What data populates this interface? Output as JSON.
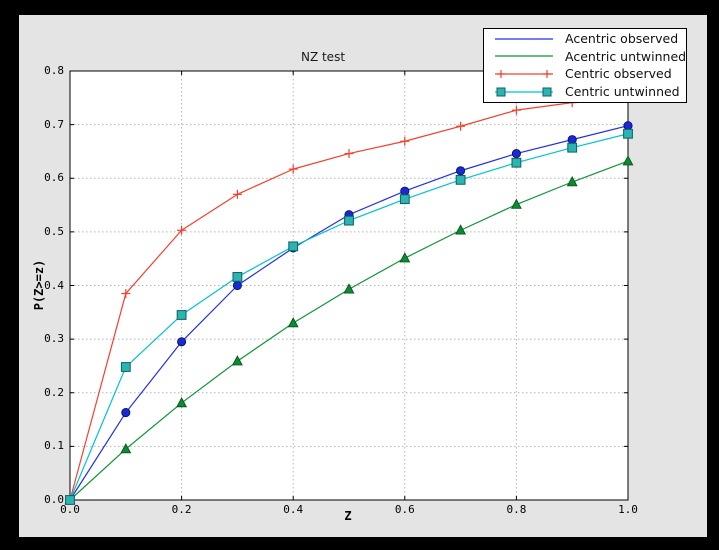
{
  "window": {
    "bg": "#000000",
    "figure_bg": "#e4e4e4",
    "plot_bg": "#ffffff",
    "grid_color": "#b3b3b3",
    "axis_color": "#000000"
  },
  "chart_data": {
    "type": "line",
    "title": "NZ test",
    "xlabel": "Z",
    "ylabel": "P(Z>=z)",
    "xlim": [
      0.0,
      1.0
    ],
    "ylim": [
      0.0,
      0.8
    ],
    "grid": "dashed gray; horizontal every 0.1, vertical every 0.2",
    "legend_position": "upper right, overlapping top-right plot corner",
    "x_tick_labels": [
      "0.0",
      "0.2",
      "0.4",
      "0.6",
      "0.8",
      "1.0"
    ],
    "x_tick_values": [
      0.0,
      0.2,
      0.4,
      0.6,
      0.8,
      1.0
    ],
    "y_tick_labels": [
      "0.0",
      "0.1",
      "0.2",
      "0.3",
      "0.4",
      "0.5",
      "0.6",
      "0.7",
      "0.8"
    ],
    "y_tick_values": [
      0.0,
      0.1,
      0.2,
      0.3,
      0.4,
      0.5,
      0.6,
      0.7,
      0.8
    ],
    "x_grid_values": [
      0.2,
      0.4,
      0.6,
      0.8
    ],
    "y_grid_values": [
      0.1,
      0.2,
      0.3,
      0.4,
      0.5,
      0.6,
      0.7
    ],
    "x": [
      0.0,
      0.1,
      0.2,
      0.3,
      0.4,
      0.5,
      0.6,
      0.7,
      0.8,
      0.9,
      1.0
    ],
    "series": [
      {
        "name": "Acentric observed",
        "color": "#2230e4",
        "marker": "circle",
        "marker_fill": "#1a2ad2",
        "marker_edge": "#071070",
        "legend_marker": false,
        "values": [
          0.0,
          0.163,
          0.295,
          0.4,
          0.47,
          0.532,
          0.576,
          0.614,
          0.646,
          0.672,
          0.698
        ]
      },
      {
        "name": "Acentric untwinned",
        "color": "#0e9636",
        "marker": "triangle",
        "marker_fill": "#0c8c30",
        "marker_edge": "#07551d",
        "legend_marker": false,
        "values": [
          0.0,
          0.095,
          0.181,
          0.259,
          0.33,
          0.393,
          0.451,
          0.503,
          0.551,
          0.593,
          0.632
        ]
      },
      {
        "name": "Centric observed",
        "color": "#f4402e",
        "marker": "plus",
        "marker_fill": "#f4402e",
        "marker_edge": "#f4402e",
        "legend_marker": true,
        "values": [
          0.0,
          0.385,
          0.503,
          0.57,
          0.617,
          0.646,
          0.669,
          0.697,
          0.727,
          0.741,
          0.755
        ]
      },
      {
        "name": "Centric untwinned",
        "color": "#00c4cc",
        "marker": "square",
        "marker_fill": "#2ab4b2",
        "marker_edge": "#0e5f60",
        "legend_marker": true,
        "values": [
          0.0,
          0.248,
          0.345,
          0.416,
          0.473,
          0.521,
          0.561,
          0.597,
          0.629,
          0.657,
          0.683
        ]
      }
    ]
  }
}
